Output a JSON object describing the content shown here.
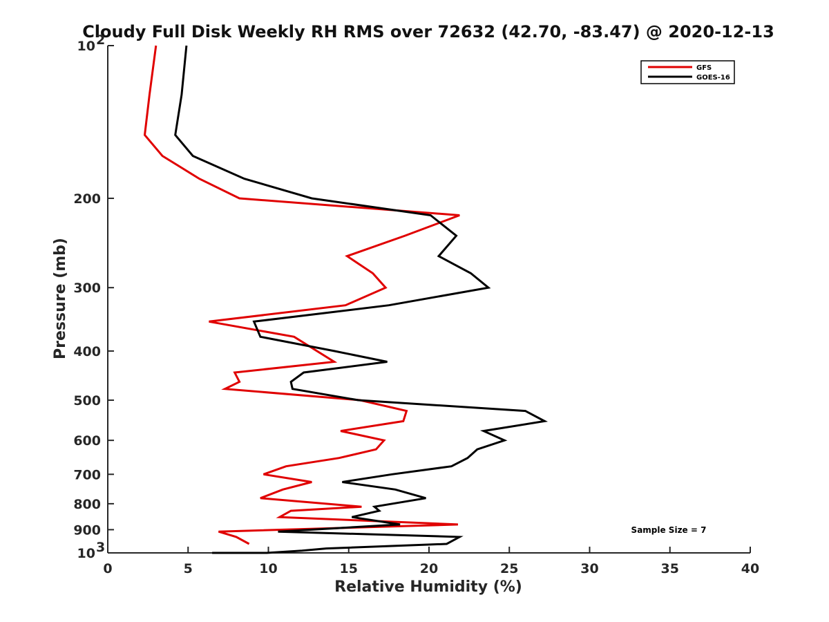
{
  "chart_data": {
    "type": "line",
    "title": "Cloudy Full Disk Weekly RH RMS over 72632 (42.70, -83.47) @ 2020-12-13",
    "xlabel": "Relative Humidity (%)",
    "ylabel": "Pressure (mb)",
    "xlim": [
      0,
      40
    ],
    "ylim": [
      100,
      1000
    ],
    "y_scale": "log",
    "y_reversed": true,
    "x_ticks": [
      "0",
      "5",
      "10",
      "15",
      "20",
      "25",
      "30",
      "35",
      "40"
    ],
    "y_ticks": [
      {
        "value": 100,
        "label": "10",
        "exp": "2"
      },
      {
        "value": 200,
        "label": "200"
      },
      {
        "value": 300,
        "label": "300"
      },
      {
        "value": 400,
        "label": "400"
      },
      {
        "value": 500,
        "label": "500"
      },
      {
        "value": 600,
        "label": "600"
      },
      {
        "value": 700,
        "label": "700"
      },
      {
        "value": 800,
        "label": "800"
      },
      {
        "value": 900,
        "label": "900"
      },
      {
        "value": 1000,
        "label": "10",
        "exp": "3"
      }
    ],
    "grid": false,
    "legend_position": "top-right",
    "annotation": "Sample Size = 7",
    "series": [
      {
        "name": "GFS",
        "color": "#e00000",
        "points": [
          [
            3.0,
            100
          ],
          [
            2.6,
            125
          ],
          [
            2.3,
            150
          ],
          [
            3.4,
            165
          ],
          [
            5.7,
            183
          ],
          [
            8.2,
            200
          ],
          [
            21.9,
            216
          ],
          [
            18.5,
            237
          ],
          [
            14.9,
            260
          ],
          [
            16.5,
            281
          ],
          [
            17.3,
            300
          ],
          [
            14.8,
            325
          ],
          [
            6.3,
            350
          ],
          [
            11.6,
            375
          ],
          [
            14.1,
            420
          ],
          [
            7.9,
            441
          ],
          [
            8.2,
            460
          ],
          [
            7.3,
            475
          ],
          [
            15.7,
            500
          ],
          [
            18.6,
            525
          ],
          [
            18.4,
            550
          ],
          [
            14.5,
            575
          ],
          [
            17.2,
            600
          ],
          [
            16.7,
            625
          ],
          [
            14.4,
            650
          ],
          [
            11.1,
            675
          ],
          [
            9.7,
            700
          ],
          [
            12.7,
            725
          ],
          [
            10.9,
            750
          ],
          [
            9.5,
            780
          ],
          [
            15.8,
            811
          ],
          [
            11.4,
            826
          ],
          [
            10.7,
            850
          ],
          [
            21.8,
            879
          ],
          [
            6.9,
            908
          ],
          [
            8.0,
            930
          ],
          [
            8.8,
            960
          ]
        ]
      },
      {
        "name": "GOES-16",
        "color": "#000000",
        "points": [
          [
            4.9,
            100
          ],
          [
            4.6,
            125
          ],
          [
            4.2,
            150
          ],
          [
            5.3,
            165
          ],
          [
            8.5,
            183
          ],
          [
            12.7,
            200
          ],
          [
            20.1,
            216
          ],
          [
            21.7,
            237
          ],
          [
            20.6,
            260
          ],
          [
            22.6,
            281
          ],
          [
            23.7,
            300
          ],
          [
            17.5,
            325
          ],
          [
            9.1,
            350
          ],
          [
            9.5,
            375
          ],
          [
            14.1,
            400
          ],
          [
            17.4,
            420
          ],
          [
            12.2,
            441
          ],
          [
            11.4,
            460
          ],
          [
            11.5,
            475
          ],
          [
            15.6,
            500
          ],
          [
            26.0,
            525
          ],
          [
            27.2,
            550
          ],
          [
            23.4,
            575
          ],
          [
            24.7,
            600
          ],
          [
            23.0,
            625
          ],
          [
            22.4,
            650
          ],
          [
            21.4,
            675
          ],
          [
            17.7,
            700
          ],
          [
            14.6,
            725
          ],
          [
            17.9,
            750
          ],
          [
            19.8,
            780
          ],
          [
            16.6,
            811
          ],
          [
            16.9,
            826
          ],
          [
            15.2,
            850
          ],
          [
            18.2,
            879
          ],
          [
            10.6,
            908
          ],
          [
            21.9,
            930
          ],
          [
            21.1,
            960
          ],
          [
            13.6,
            980
          ],
          [
            12.1,
            990
          ],
          [
            9.9,
            1000
          ],
          [
            6.5,
            1000
          ]
        ]
      }
    ]
  }
}
